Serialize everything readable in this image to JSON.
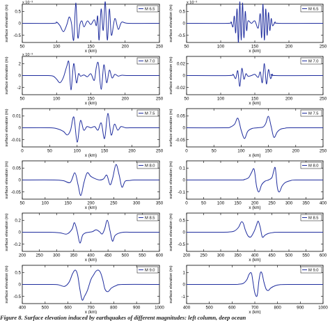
{
  "figure": {
    "caption": "Figure 8. Surface elevation induced by earthquakes of different magnitudes: left column, deep ocean"
  },
  "chart_data": [
    {
      "id": "L1",
      "type": "line",
      "magnitude_label": "M 6.5",
      "xlim": [
        50,
        250
      ],
      "xticks": [
        50,
        100,
        150,
        200,
        250
      ],
      "yticks": [
        "-0.5",
        "0",
        "0.5"
      ],
      "y_exponent": "x 10⁻³",
      "xlabel": "x (km)",
      "ylabel": "surface elevation (m)",
      "series": [
        {
          "name": "M 6.5",
          "color": "#1f2d9e",
          "x": [
            50,
            95,
            100,
            105,
            110,
            115,
            118,
            120,
            122,
            125,
            128,
            131,
            134,
            137,
            140,
            145,
            150,
            155,
            158,
            160,
            162,
            165,
            168,
            171,
            174,
            177,
            180,
            185,
            190,
            195,
            205,
            250
          ],
          "y": [
            0,
            0,
            0.05,
            -0.1,
            -0.35,
            -0.05,
            0.25,
            0.2,
            -0.05,
            -0.7,
            0.85,
            -0.6,
            -0.05,
            0.1,
            -0.15,
            0.1,
            -0.05,
            0.15,
            -0.1,
            0.3,
            -0.7,
            0.6,
            -0.3,
            0.9,
            -0.7,
            0.6,
            -0.5,
            0.2,
            -0.25,
            0.05,
            0,
            0
          ]
        }
      ]
    },
    {
      "id": "R1",
      "type": "line",
      "magnitude_label": "M 6.5",
      "xlim": [
        50,
        250
      ],
      "xticks": [
        50,
        100,
        150,
        200,
        250
      ],
      "yticks": [
        "-0.5",
        "0",
        "0.5"
      ],
      "y_exponent": "x 10⁻³",
      "xlabel": "x (km)",
      "ylabel": "surface elevation (m)",
      "series": [
        {
          "name": "M 6.5",
          "color": "#1f2d9e",
          "x": [
            50,
            110,
            115,
            118,
            120,
            122,
            124,
            126,
            128,
            130,
            132,
            134,
            136,
            138,
            140,
            145,
            150,
            155,
            158,
            160,
            162,
            164,
            166,
            168,
            170,
            172,
            174,
            176,
            180,
            185,
            250
          ],
          "y": [
            0,
            0,
            0.05,
            -0.15,
            0.3,
            -0.4,
            0.6,
            -0.8,
            0.9,
            -0.7,
            0.85,
            -0.6,
            0.5,
            -0.3,
            0.1,
            0,
            0.1,
            -0.2,
            0.4,
            -0.6,
            0.8,
            -0.7,
            0.6,
            -0.5,
            0.45,
            -0.3,
            0.2,
            -0.1,
            0.05,
            0,
            0
          ]
        }
      ]
    },
    {
      "id": "L2",
      "type": "line",
      "magnitude_label": "M 7.0",
      "xlim": [
        50,
        250
      ],
      "xticks": [
        50,
        100,
        150,
        200,
        250
      ],
      "yticks": [
        "-2",
        "0",
        "2"
      ],
      "y_exponent": "x 10⁻³",
      "xlabel": "x (km)",
      "ylabel": "surface elevation (m)",
      "series": [
        {
          "name": "M 7.0",
          "color": "#1f2d9e",
          "x": [
            50,
            85,
            95,
            100,
            105,
            110,
            115,
            118,
            121,
            125,
            129,
            132,
            135,
            140,
            145,
            150,
            155,
            158,
            161,
            165,
            169,
            173,
            177,
            181,
            185,
            190,
            195,
            205,
            250
          ],
          "y": [
            0,
            0,
            -0.1,
            -0.6,
            -1.2,
            -0.3,
            1.6,
            2.2,
            -2.4,
            2.0,
            -1.2,
            0.3,
            -0.1,
            0.1,
            -0.2,
            0.3,
            -0.8,
            1.4,
            2.0,
            -2.3,
            1.8,
            -1.2,
            0.9,
            -0.4,
            0.2,
            -0.1,
            0.05,
            0,
            0
          ]
        }
      ]
    },
    {
      "id": "R2",
      "type": "line",
      "magnitude_label": "M 7.0",
      "xlim": [
        50,
        250
      ],
      "xticks": [
        50,
        100,
        150,
        200,
        250
      ],
      "yticks": [
        "-0.02",
        "0",
        "0.02"
      ],
      "y_exponent": "",
      "xlabel": "x (km)",
      "ylabel": "surface elevation (m)",
      "series": [
        {
          "name": "M 7.0",
          "color": "#1f2d9e",
          "x": [
            50,
            112,
            118,
            122,
            125,
            128,
            131,
            134,
            137,
            140,
            145,
            150,
            155,
            158,
            161,
            164,
            167,
            170,
            173,
            176,
            180,
            250
          ],
          "y": [
            0,
            0,
            0.002,
            -0.005,
            0.008,
            -0.018,
            0.012,
            -0.006,
            0.003,
            -0.001,
            0,
            0.002,
            -0.003,
            0.006,
            -0.012,
            0.02,
            -0.014,
            0.01,
            -0.005,
            0.002,
            0,
            0
          ]
        }
      ]
    },
    {
      "id": "L3",
      "type": "line",
      "magnitude_label": "M 7.5",
      "xlim": [
        0,
        250
      ],
      "xticks": [
        0,
        50,
        100,
        150,
        200,
        250
      ],
      "yticks": [
        "-0.01",
        "0",
        "0.01"
      ],
      "y_exponent": "",
      "xlabel": "x (km)",
      "ylabel": "surface elevation (m)",
      "series": [
        {
          "name": "M 7.5",
          "color": "#1f2d9e",
          "x": [
            0,
            50,
            65,
            75,
            82,
            88,
            94,
            100,
            106,
            112,
            118,
            125,
            132,
            138,
            144,
            150,
            156,
            162,
            168,
            174,
            180,
            188,
            196,
            210,
            250
          ],
          "y": [
            0,
            0,
            -0.001,
            -0.003,
            -0.006,
            -0.002,
            0.009,
            -0.012,
            0.006,
            -0.002,
            0.001,
            0,
            0.001,
            -0.002,
            0.004,
            -0.009,
            0.012,
            -0.006,
            0.003,
            -0.002,
            0.001,
            0,
            0,
            0,
            0
          ]
        }
      ]
    },
    {
      "id": "R3",
      "type": "line",
      "magnitude_label": "M 7.5",
      "xlim": [
        0,
        250
      ],
      "xticks": [
        0,
        50,
        100,
        150,
        200,
        250
      ],
      "yticks": [
        "-0.05",
        "0",
        "0.05"
      ],
      "y_exponent": "",
      "xlabel": "x (km)",
      "ylabel": "surface elevation (m)",
      "series": [
        {
          "name": "M 7.5",
          "color": "#1f2d9e",
          "x": [
            0,
            70,
            80,
            88,
            94,
            100,
            106,
            112,
            120,
            130,
            140,
            145,
            150,
            155,
            160,
            166,
            172,
            180,
            190,
            250
          ],
          "y": [
            0,
            0,
            0.003,
            0.015,
            0.04,
            -0.01,
            -0.045,
            -0.015,
            -0.003,
            0,
            0.003,
            0.018,
            0.048,
            0.005,
            -0.04,
            -0.018,
            -0.006,
            -0.002,
            0,
            0
          ]
        }
      ]
    },
    {
      "id": "L4",
      "type": "line",
      "magnitude_label": "M 8.0",
      "xlim": [
        50,
        350
      ],
      "xticks": [
        50,
        100,
        150,
        200,
        250,
        300,
        350
      ],
      "yticks": [
        "-0.05",
        "0",
        "0.05"
      ],
      "y_exponent": "",
      "xlabel": "x (km)",
      "ylabel": "surface elevation (m)",
      "series": [
        {
          "name": "M 8.0",
          "color": "#1f2d9e",
          "x": [
            50,
            120,
            140,
            155,
            165,
            172,
            178,
            185,
            192,
            200,
            210,
            220,
            228,
            235,
            242,
            248,
            255,
            262,
            268,
            275,
            285,
            295,
            310,
            350
          ],
          "y": [
            0,
            0,
            -0.003,
            -0.01,
            0.03,
            -0.02,
            -0.065,
            -0.01,
            0.03,
            0.015,
            0.005,
            0,
            0.005,
            0.02,
            -0.02,
            0.01,
            0.065,
            0.02,
            -0.03,
            -0.005,
            -0.002,
            0,
            0,
            0
          ]
        }
      ]
    },
    {
      "id": "R4",
      "type": "line",
      "magnitude_label": "M 8.0",
      "xlim": [
        0,
        400
      ],
      "xticks": [
        0,
        50,
        100,
        150,
        200,
        250,
        300,
        350,
        400
      ],
      "yticks": [
        "-0.1",
        "0",
        "0.1"
      ],
      "y_exponent": "",
      "xlabel": "x (km)",
      "ylabel": "surface elevation (m)",
      "series": [
        {
          "name": "M 8.0",
          "color": "#1f2d9e",
          "x": [
            0,
            150,
            170,
            182,
            190,
            198,
            205,
            212,
            220,
            230,
            240,
            250,
            255,
            260,
            266,
            272,
            280,
            290,
            305,
            320,
            400
          ],
          "y": [
            0,
            0,
            0.005,
            0.02,
            0.06,
            0.09,
            -0.05,
            -0.1,
            -0.04,
            -0.01,
            0,
            0.02,
            0.07,
            0.1,
            -0.06,
            -0.1,
            -0.05,
            -0.02,
            -0.005,
            0,
            0
          ]
        }
      ]
    },
    {
      "id": "L5",
      "type": "line",
      "magnitude_label": "M 8.5",
      "xlim": [
        200,
        600
      ],
      "xticks": [
        200,
        250,
        300,
        350,
        400,
        450,
        500,
        550,
        600
      ],
      "yticks": [
        "-0.2",
        "0",
        "0.2"
      ],
      "y_exponent": "",
      "xlabel": "x (km)",
      "ylabel": "surface elevation (m)",
      "series": [
        {
          "name": "M 8.5",
          "color": "#1f2d9e",
          "x": [
            200,
            280,
            310,
            330,
            345,
            352,
            360,
            368,
            376,
            385,
            395,
            405,
            415,
            425,
            433,
            440,
            448,
            456,
            463,
            470,
            480,
            495,
            520,
            600
          ],
          "y": [
            0,
            0,
            -0.01,
            -0.03,
            0.05,
            0.16,
            0.02,
            -0.18,
            -0.05,
            -0.01,
            0,
            0.01,
            0.04,
            0.01,
            -0.03,
            0.05,
            0.2,
            0.02,
            -0.15,
            -0.06,
            -0.02,
            0,
            0,
            0
          ]
        }
      ]
    },
    {
      "id": "R5",
      "type": "line",
      "magnitude_label": "M 8.5",
      "xlim": [
        200,
        600
      ],
      "xticks": [
        200,
        250,
        300,
        350,
        400,
        450,
        500,
        550,
        600
      ],
      "yticks": [
        "-0.5",
        "0",
        "0.5"
      ],
      "y_exponent": "",
      "xlabel": "x (km)",
      "ylabel": "surface elevation (m)",
      "series": [
        {
          "name": "M 8.5",
          "color": "#1f2d9e",
          "x": [
            200,
            300,
            325,
            340,
            352,
            360,
            366,
            372,
            380,
            388,
            395,
            400,
            405,
            410,
            416,
            422,
            430,
            440,
            455,
            475,
            600
          ],
          "y": [
            0,
            0,
            0.01,
            0.05,
            0.2,
            0.42,
            0.38,
            0.1,
            -0.15,
            -0.2,
            -0.05,
            0.1,
            0.3,
            0.46,
            0.2,
            -0.2,
            -0.12,
            -0.05,
            -0.01,
            0,
            0
          ]
        }
      ]
    },
    {
      "id": "L6",
      "type": "line",
      "magnitude_label": "M 9.0",
      "xlim": [
        400,
        1000
      ],
      "xticks": [
        400,
        500,
        600,
        700,
        800,
        900,
        1000
      ],
      "yticks": [
        "-0.5",
        "0",
        "0.5"
      ],
      "y_exponent": "",
      "xlabel": "x (km)",
      "ylabel": "surface elevation (m)",
      "series": [
        {
          "name": "M 9.0",
          "color": "#1f2d9e",
          "x": [
            400,
            530,
            560,
            585,
            605,
            620,
            632,
            642,
            652,
            662,
            672,
            685,
            700,
            712,
            722,
            732,
            742,
            752,
            762,
            775,
            790,
            810,
            840,
            1000
          ],
          "y": [
            0,
            0,
            -0.02,
            -0.08,
            0.1,
            0.45,
            0.6,
            0.4,
            -0.2,
            -0.65,
            -0.5,
            -0.25,
            0.2,
            0.4,
            0.55,
            0.6,
            0.5,
            0.2,
            -0.2,
            -0.3,
            -0.15,
            -0.05,
            0,
            0
          ]
        }
      ]
    },
    {
      "id": "R6",
      "type": "line",
      "magnitude_label": "M 9.0",
      "xlim": [
        400,
        1000
      ],
      "xticks": [
        400,
        500,
        600,
        700,
        800,
        900,
        1000
      ],
      "yticks": [
        "-1",
        "0",
        "1"
      ],
      "y_exponent": "",
      "xlabel": "x (km)",
      "ylabel": "surface elevation (m)",
      "series": [
        {
          "name": "M 9.0",
          "color": "#1f2d9e",
          "x": [
            400,
            600,
            630,
            650,
            665,
            675,
            685,
            692,
            700,
            710,
            718,
            725,
            732,
            740,
            750,
            760,
            770,
            790,
            810,
            850,
            1000
          ],
          "y": [
            0,
            0,
            0.02,
            0.1,
            0.4,
            0.85,
            0.95,
            0.2,
            -0.7,
            -0.95,
            0.3,
            1.0,
            0.9,
            0.2,
            -0.4,
            -0.5,
            -0.3,
            -0.1,
            -0.02,
            0,
            0
          ]
        }
      ]
    }
  ]
}
